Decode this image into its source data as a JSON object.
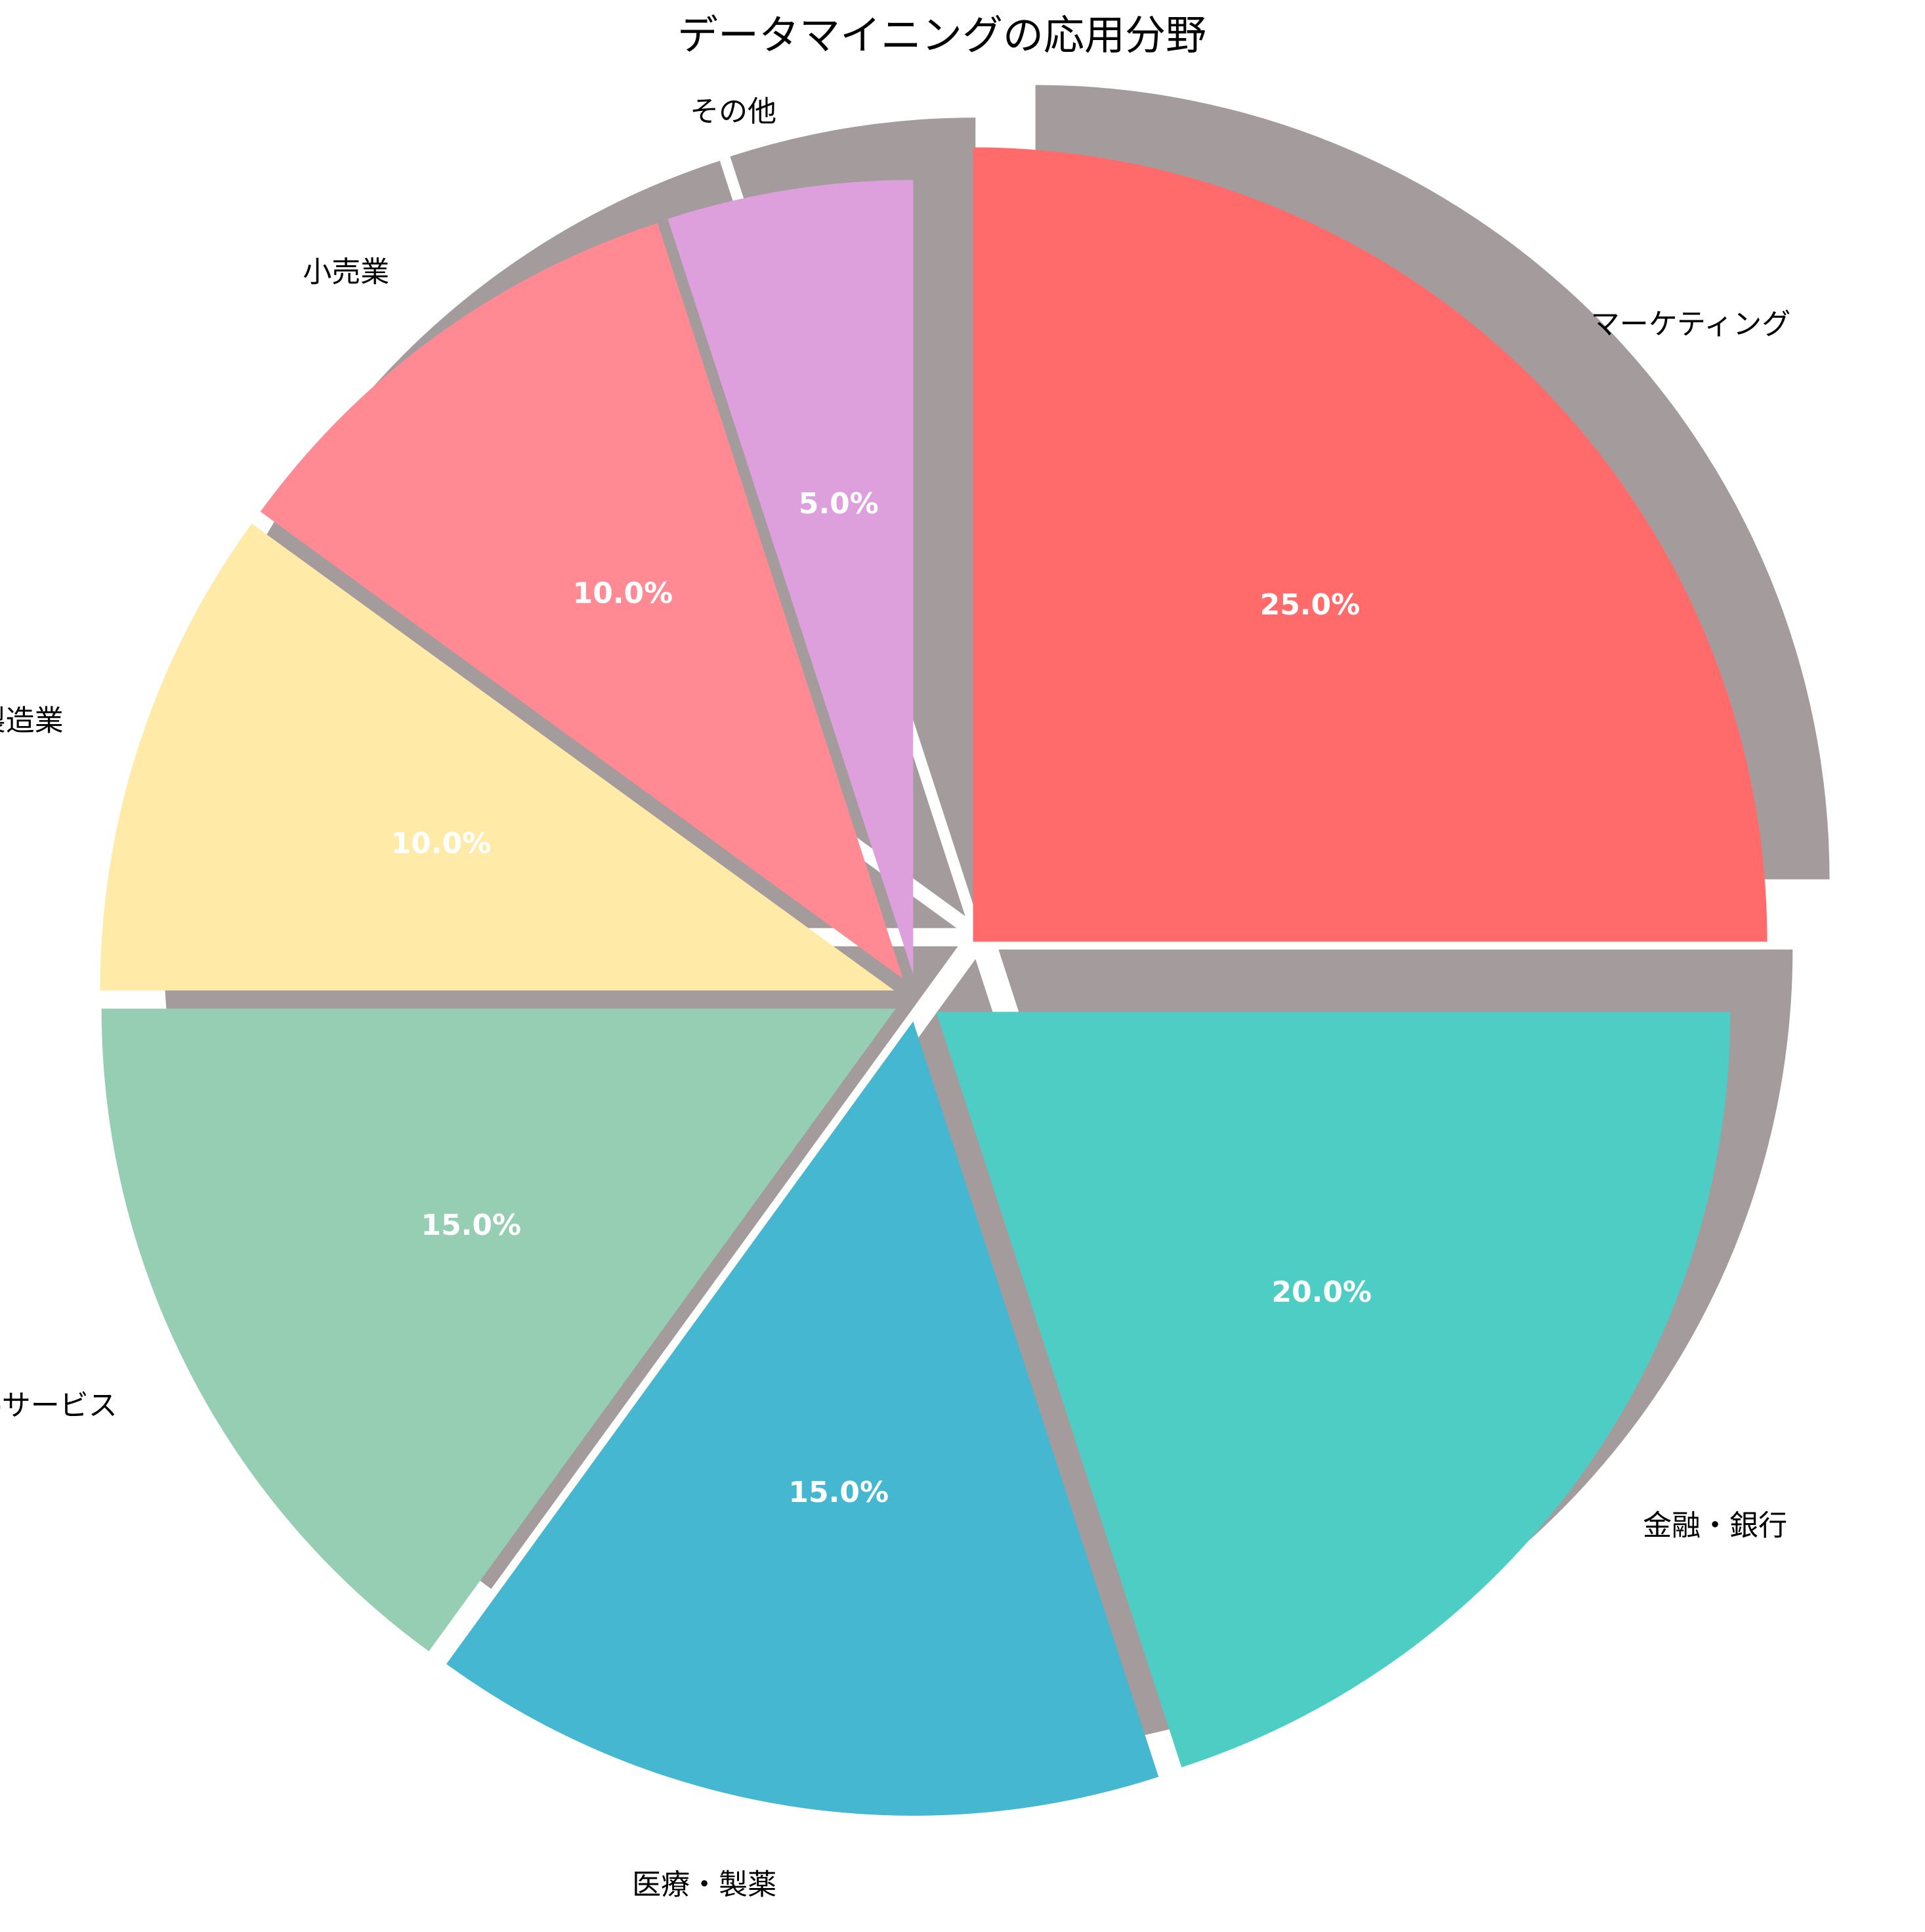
{
  "chart_data": {
    "type": "pie",
    "title": "データマイニングの応用分野",
    "start_angle_deg": 90,
    "direction": "clockwise",
    "shadow": true,
    "slices": [
      {
        "label": "マーケティング",
        "value": 25.0,
        "display": "25.0%",
        "color": "#FF6B6B",
        "explode": 0.1
      },
      {
        "label": "金融・銀行",
        "value": 20.0,
        "display": "20.0%",
        "color": "#4ECDC4",
        "explode": 0.03
      },
      {
        "label": "医療・製薬",
        "value": 15.0,
        "display": "15.0%",
        "color": "#45B7D1",
        "explode": 0.03
      },
      {
        "label": "Webサービス",
        "value": 15.0,
        "display": "15.0%",
        "color": "#96CEB4",
        "explode": 0.03
      },
      {
        "label": "製造業",
        "value": 10.0,
        "display": "10.0%",
        "color": "#FFEAA7",
        "explode": 0.03
      },
      {
        "label": "小売業",
        "value": 10.0,
        "display": "10.0%",
        "color": "#FF8A93",
        "explode": 0.03
      },
      {
        "label": "その他",
        "value": 5.0,
        "display": "5.0%",
        "color": "#DDA0DD",
        "explode": 0.03
      }
    ],
    "colors": {
      "shadow": "#5a4a4a",
      "label_text": "#000000",
      "pct_text": "#ffffff"
    }
  }
}
